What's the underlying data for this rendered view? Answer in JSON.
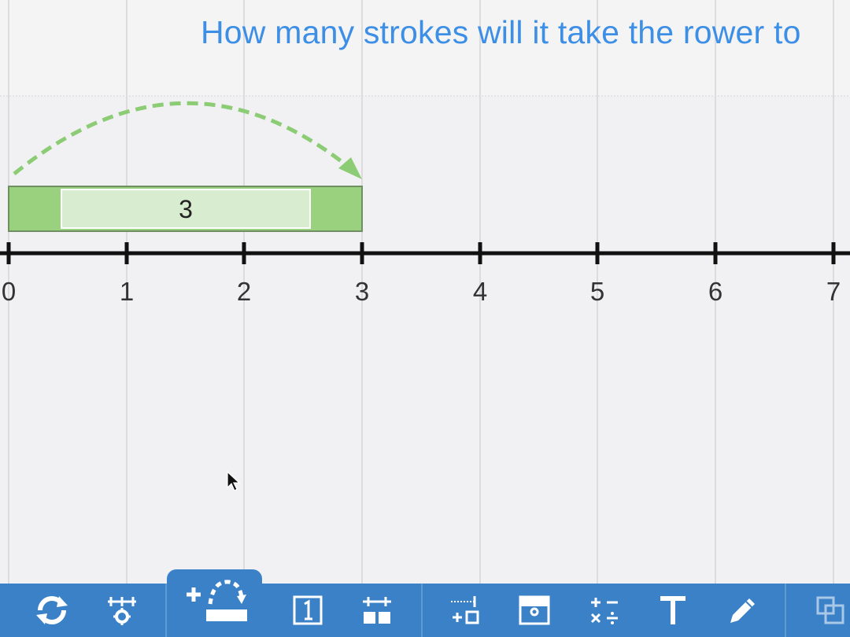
{
  "question": "How many strokes will it take the rower to",
  "number_line": {
    "ticks": [
      "0",
      "1",
      "2",
      "3",
      "4",
      "5",
      "6",
      "7"
    ]
  },
  "jump_bar": {
    "label": "3",
    "start": 0,
    "end": 3
  },
  "colors": {
    "background": "#f1f1f3",
    "question_text": "#3d8fe6",
    "bar_outer": "#99d17f",
    "bar_inner": "#d8ecd0",
    "jump_arrow": "#8ccc75",
    "toolbar": "#3b81c7"
  },
  "toolbar": {
    "tools": [
      "refresh-icon",
      "number-line-settings-icon",
      "add-jump-icon",
      "number-card-icon",
      "partition-icon",
      "add-bar-icon",
      "hide-show-icon",
      "operations-icon",
      "text-tool-icon",
      "pencil-icon",
      "window-icon"
    ],
    "active_tool": "add-jump-icon"
  }
}
